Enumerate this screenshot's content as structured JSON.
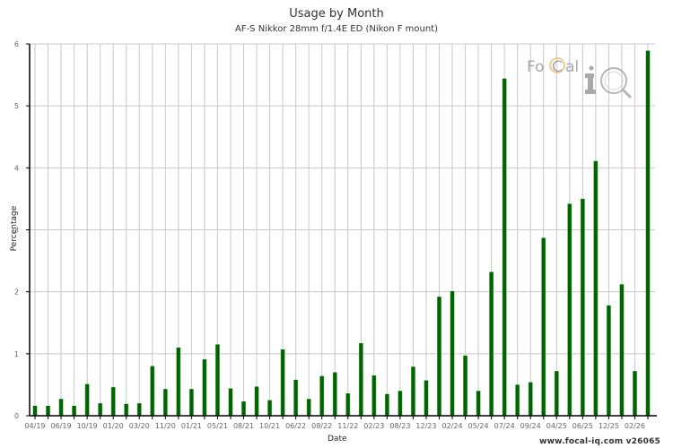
{
  "header": {
    "title": "Usage by Month",
    "subtitle": "AF-S Nikkor 28mm f/1.4E ED (Nikon F mount)"
  },
  "footer": {
    "credit": "www.focal-iq.com  v26065"
  },
  "logo": {
    "text_left": "FoCal",
    "text_right": "iQ"
  },
  "colors": {
    "bar": "#006400",
    "bar_edge": "#7fbf7f",
    "grid": "#c8c8c8",
    "axis": "#000000",
    "tick_text": "#666666",
    "logo_orange": "#f0a040",
    "logo_gray": "#9a9a9a"
  },
  "chart_data": {
    "type": "bar",
    "title": "Usage by Month",
    "subtitle": "AF-S Nikkor 28mm f/1.4E ED (Nikon F mount)",
    "xlabel": "Date",
    "ylabel": "Percentage",
    "ylim": [
      0,
      6
    ],
    "yticks": [
      0,
      1,
      2,
      3,
      4,
      5,
      6
    ],
    "grid": true,
    "legend": null,
    "tick_labels": [
      "04/19",
      "",
      "06/19",
      "",
      "10/19",
      "",
      "01/20",
      "",
      "03/20",
      "",
      "11/20",
      "",
      "01/21",
      "",
      "05/21",
      "",
      "08/21",
      "",
      "10/21",
      "",
      "06/22",
      "",
      "08/22",
      "",
      "11/22",
      "",
      "02/23",
      "",
      "08/23",
      "",
      "12/23",
      "",
      "02/24",
      "",
      "05/24",
      "",
      "07/24",
      "",
      "09/24",
      "",
      "04/25",
      "",
      "06/25",
      "",
      "12/25",
      "",
      "02/26",
      ""
    ],
    "values": [
      0.16,
      0.16,
      0.27,
      0.16,
      0.51,
      0.2,
      0.46,
      0.19,
      0.2,
      0.8,
      0.43,
      1.1,
      0.43,
      0.91,
      1.15,
      0.44,
      0.23,
      0.47,
      0.25,
      1.07,
      0.58,
      0.27,
      0.64,
      0.7,
      0.36,
      1.17,
      0.65,
      0.35,
      0.4,
      0.79,
      0.57,
      1.92,
      2.01,
      0.97,
      0.4,
      2.32,
      5.44,
      0.5,
      0.54,
      2.87,
      0.72,
      3.42,
      3.5,
      4.11,
      1.78,
      2.12,
      0.72,
      5.89
    ]
  }
}
